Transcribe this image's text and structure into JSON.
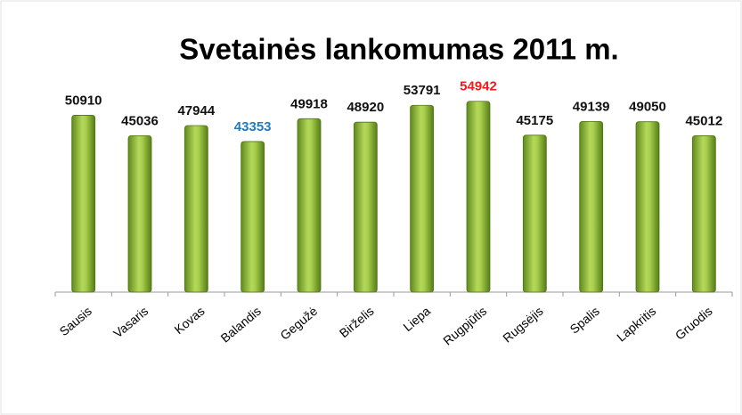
{
  "chart_data": {
    "type": "bar",
    "title": "Svetainės lankomumas 2011 m.",
    "categories": [
      "Sausis",
      "Vasaris",
      "Kovas",
      "Balandis",
      "Gegužė",
      "Birželis",
      "Liepa",
      "Rugpjūtis",
      "Rugsėjis",
      "Spalis",
      "Lapkritis",
      "Gruodis"
    ],
    "values": [
      50910,
      45036,
      47944,
      43353,
      49918,
      48920,
      53791,
      54942,
      45175,
      49139,
      49050,
      45012
    ],
    "color": "#8db53a",
    "value_label_colors": [
      "#111111",
      "#111111",
      "#111111",
      "#1f7bc0",
      "#111111",
      "#111111",
      "#111111",
      "#ee1c1c",
      "#111111",
      "#111111",
      "#111111",
      "#111111"
    ],
    "ylim": [
      0,
      60000
    ]
  }
}
